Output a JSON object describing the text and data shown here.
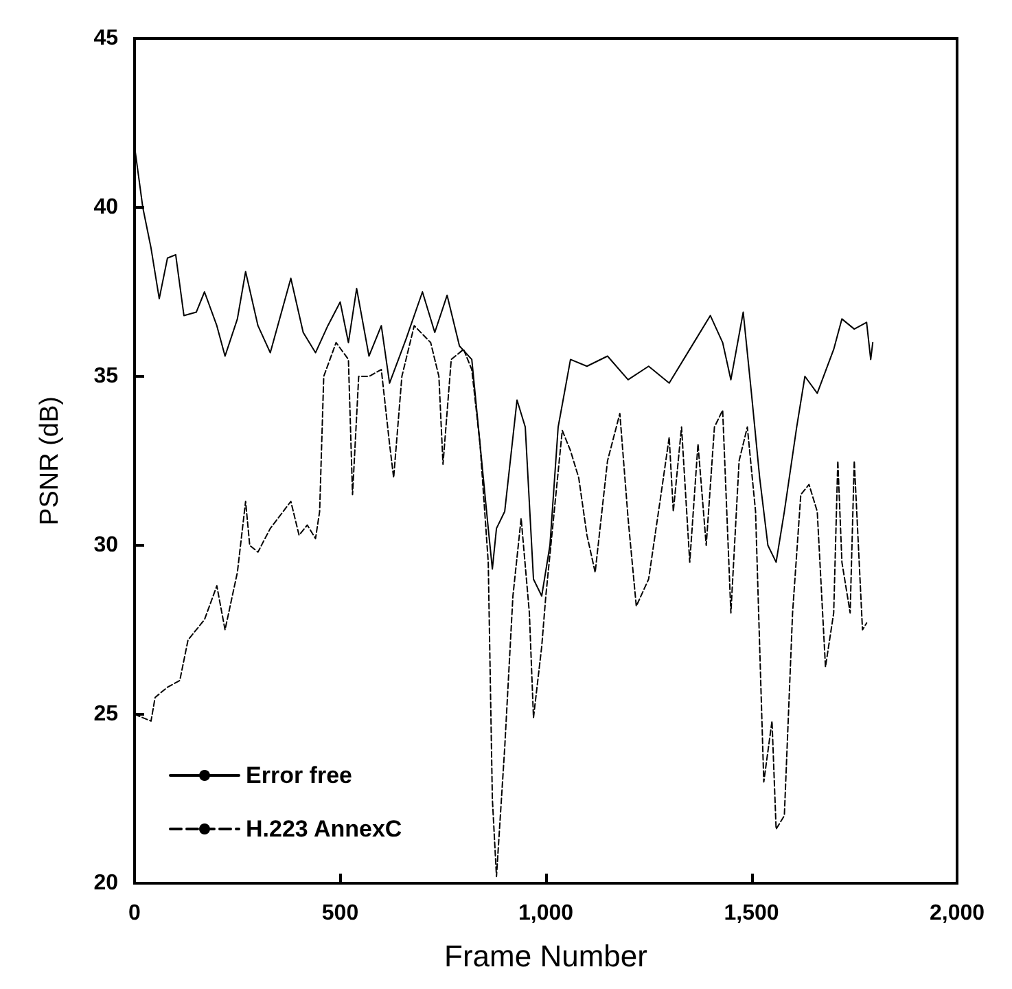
{
  "chart_data": {
    "type": "line",
    "xlabel": "Frame Number",
    "ylabel": "PSNR (dB)",
    "xlim": [
      0,
      2000
    ],
    "ylim": [
      20,
      45
    ],
    "xticks": [
      0,
      500,
      {
        "value": 1000,
        "label": "1,000"
      },
      {
        "value": 1500,
        "label": "1,500"
      },
      {
        "value": 2000,
        "label": "2,000"
      }
    ],
    "yticks": [
      20,
      25,
      30,
      35,
      40,
      45
    ],
    "legend": "bottom left",
    "grid": false,
    "series": [
      {
        "name": "Error free",
        "color": "#000000",
        "line_style": "solid",
        "x": [
          0,
          20,
          40,
          60,
          80,
          100,
          120,
          150,
          170,
          200,
          220,
          250,
          270,
          300,
          330,
          380,
          410,
          440,
          470,
          500,
          520,
          540,
          570,
          600,
          620,
          660,
          700,
          730,
          760,
          790,
          820,
          840,
          860,
          870,
          880,
          900,
          930,
          950,
          970,
          990,
          1010,
          1030,
          1060,
          1100,
          1150,
          1200,
          1250,
          1300,
          1350,
          1400,
          1430,
          1450,
          1480,
          1500,
          1520,
          1540,
          1560,
          1580,
          1610,
          1630,
          1660,
          1700,
          1720,
          1750,
          1780,
          1790,
          1795
        ],
        "values": [
          41.8,
          40,
          38.8,
          37.3,
          38.5,
          38.6,
          36.8,
          36.9,
          37.5,
          36.5,
          35.6,
          36.7,
          38.1,
          36.5,
          35.7,
          37.9,
          36.3,
          35.7,
          36.5,
          37.2,
          36,
          37.6,
          35.6,
          36.5,
          34.8,
          36.1,
          37.5,
          36.3,
          37.4,
          35.9,
          35.5,
          33,
          30.5,
          29.3,
          30.5,
          31,
          34.3,
          33.5,
          29,
          28.5,
          30,
          33.5,
          35.5,
          35.3,
          35.6,
          34.9,
          35.3,
          34.8,
          35.8,
          36.8,
          36,
          34.9,
          36.9,
          34.5,
          32,
          30,
          29.5,
          31,
          33.5,
          35,
          34.5,
          35.8,
          36.7,
          36.4,
          36.6,
          35.5,
          36
        ]
      },
      {
        "name": "H.223 AnnexC",
        "color": "#000000",
        "line_style": "dashed",
        "x": [
          0,
          40,
          50,
          80,
          110,
          130,
          170,
          200,
          220,
          250,
          270,
          280,
          300,
          330,
          380,
          400,
          420,
          440,
          450,
          460,
          490,
          520,
          530,
          545,
          570,
          600,
          620,
          630,
          650,
          680,
          720,
          740,
          750,
          770,
          800,
          820,
          840,
          860,
          870,
          880,
          900,
          920,
          940,
          960,
          970,
          990,
          1000,
          1040,
          1060,
          1080,
          1100,
          1120,
          1150,
          1180,
          1200,
          1220,
          1250,
          1280,
          1300,
          1310,
          1330,
          1350,
          1370,
          1390,
          1410,
          1430,
          1450,
          1470,
          1490,
          1510,
          1530,
          1550,
          1560,
          1580,
          1600,
          1620,
          1640,
          1660,
          1680,
          1700,
          1710,
          1720,
          1740,
          1750,
          1770,
          1780
        ],
        "values": [
          25,
          24.8,
          25.5,
          25.8,
          26,
          27.2,
          27.8,
          28.8,
          27.5,
          29.2,
          31.3,
          30,
          29.8,
          30.5,
          31.3,
          30.3,
          30.6,
          30.2,
          31,
          35,
          36,
          35.5,
          31.5,
          35,
          35,
          35.2,
          33,
          32,
          35,
          36.5,
          36,
          35,
          32.4,
          35.5,
          35.8,
          35.2,
          33,
          29.5,
          22.5,
          20.2,
          24,
          28.5,
          30.8,
          28,
          24.9,
          27,
          28.5,
          33.4,
          32.8,
          32,
          30.3,
          29.2,
          32.5,
          33.9,
          30.8,
          28.2,
          29,
          31.5,
          33.2,
          31,
          33.5,
          29.5,
          33,
          30,
          33.5,
          34,
          28,
          32.5,
          33.5,
          31,
          23,
          24.8,
          21.6,
          22,
          28,
          31.5,
          31.8,
          31,
          26.4,
          28,
          32.5,
          29.5,
          28,
          32.5,
          27.5,
          27.7
        ]
      }
    ]
  }
}
